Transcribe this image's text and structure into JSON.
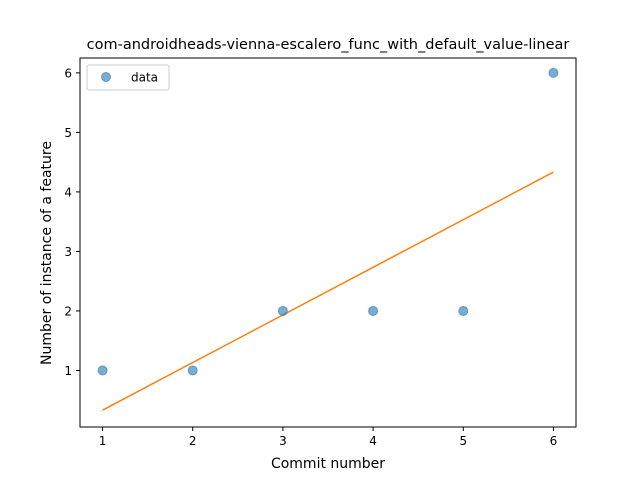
{
  "chart_data": {
    "type": "scatter",
    "title": "com-androidheads-vienna-escalero_func_with_default_value-linear",
    "xlabel": "Commit number",
    "ylabel": "Number of instance of a feature",
    "xlim": [
      0.75,
      6.25
    ],
    "ylim": [
      0.05,
      6.25
    ],
    "xticks": [
      1,
      2,
      3,
      4,
      5,
      6
    ],
    "yticks": [
      1,
      2,
      3,
      4,
      5,
      6
    ],
    "grid": false,
    "legend_position": "upper-left",
    "series": [
      {
        "name": "data",
        "kind": "scatter",
        "color": "#1f77b4",
        "x": [
          1,
          2,
          3,
          4,
          5,
          6
        ],
        "y": [
          1,
          1,
          2,
          2,
          2,
          6
        ]
      },
      {
        "kind": "line",
        "color": "#ff7f0e",
        "x": [
          1,
          6
        ],
        "y": [
          0.333,
          4.333
        ]
      }
    ]
  }
}
